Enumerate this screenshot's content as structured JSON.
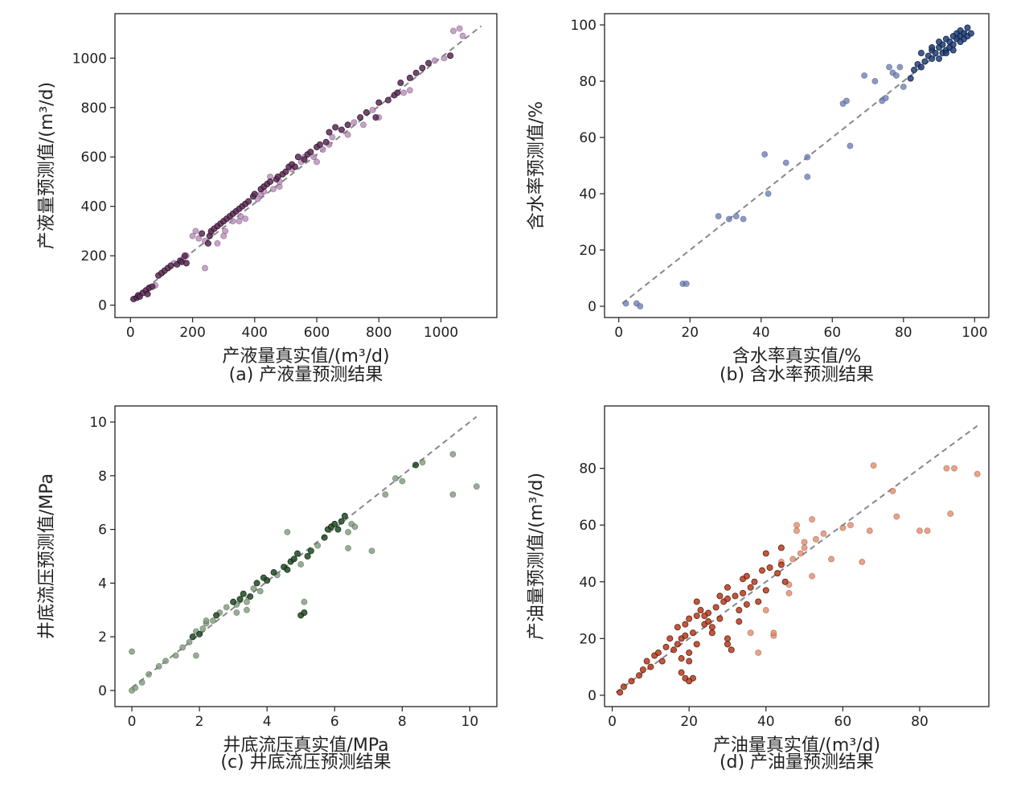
{
  "chart_data": [
    {
      "id": "a",
      "type": "scatter",
      "caption": "(a) 产液量预测结果",
      "xlabel": "产液量真实值/(m³/d)",
      "ylabel": "产液量预测值/(m³/d)",
      "xlim": [
        -50,
        1180
      ],
      "ylim": [
        -50,
        1180
      ],
      "xticks": [
        0,
        200,
        400,
        600,
        800,
        1000
      ],
      "yticks": [
        0,
        200,
        400,
        600,
        800,
        1000
      ],
      "reference_line": [
        [
          0,
          20
        ],
        [
          1130,
          1130
        ]
      ],
      "colors": {
        "dark": "#5a2a55",
        "light": "#b98bbb",
        "edge": "#2a1028"
      },
      "points": {
        "x": [
          10,
          20,
          25,
          30,
          40,
          50,
          55,
          60,
          70,
          80,
          90,
          100,
          110,
          120,
          130,
          140,
          150,
          160,
          165,
          170,
          175,
          180,
          200,
          210,
          220,
          230,
          240,
          250,
          255,
          260,
          270,
          280,
          290,
          300,
          305,
          310,
          320,
          330,
          340,
          350,
          355,
          360,
          370,
          380,
          395,
          400,
          410,
          420,
          430,
          440,
          450,
          460,
          470,
          475,
          480,
          490,
          500,
          510,
          520,
          530,
          540,
          550,
          560,
          570,
          580,
          590,
          600,
          610,
          620,
          630,
          640,
          650,
          660,
          680,
          700,
          720,
          740,
          760,
          780,
          790,
          800,
          830,
          850,
          860,
          870,
          880,
          900,
          920,
          940,
          960,
          980,
          1010,
          1030,
          1040,
          1060,
          1070,
          180,
          240,
          260,
          300,
          330,
          370,
          420,
          430,
          450,
          520,
          600,
          700,
          800,
          280,
          350,
          480,
          560,
          640,
          750,
          900
        ],
        "y": [
          25,
          30,
          40,
          35,
          50,
          60,
          45,
          70,
          75,
          80,
          120,
          130,
          140,
          150,
          160,
          170,
          165,
          180,
          175,
          190,
          200,
          170,
          280,
          300,
          270,
          290,
          150,
          250,
          280,
          300,
          310,
          320,
          330,
          340,
          300,
          350,
          360,
          370,
          380,
          390,
          360,
          400,
          410,
          420,
          440,
          450,
          430,
          470,
          480,
          490,
          500,
          470,
          510,
          520,
          480,
          530,
          540,
          560,
          570,
          560,
          600,
          580,
          590,
          610,
          620,
          600,
          640,
          650,
          630,
          660,
          700,
          680,
          720,
          710,
          730,
          740,
          760,
          780,
          790,
          760,
          820,
          830,
          850,
          860,
          900,
          860,
          920,
          940,
          960,
          980,
          990,
          1000,
          1010,
          1110,
          1120,
          1090,
          200,
          260,
          290,
          280,
          340,
          350,
          450,
          460,
          520,
          550,
          580,
          690,
          760,
          250,
          340,
          500,
          600,
          650,
          730,
          870
        ],
        "dark_flags": [
          1,
          1,
          1,
          1,
          1,
          1,
          1,
          1,
          1,
          0,
          1,
          1,
          1,
          1,
          1,
          0,
          1,
          1,
          1,
          0,
          1,
          1,
          0,
          0,
          0,
          1,
          0,
          1,
          1,
          1,
          1,
          1,
          1,
          1,
          0,
          1,
          1,
          1,
          1,
          1,
          0,
          1,
          1,
          1,
          1,
          1,
          0,
          1,
          1,
          1,
          1,
          0,
          1,
          1,
          0,
          1,
          1,
          1,
          1,
          1,
          1,
          0,
          1,
          1,
          1,
          0,
          1,
          1,
          0,
          1,
          1,
          0,
          1,
          1,
          1,
          0,
          1,
          1,
          0,
          1,
          1,
          1,
          1,
          1,
          1,
          0,
          1,
          1,
          1,
          1,
          0,
          0,
          1,
          0,
          0,
          0,
          0,
          0,
          0,
          0,
          0,
          0,
          0,
          0,
          0,
          0,
          0,
          0,
          0,
          0,
          0,
          0,
          0,
          0,
          0
        ]
      }
    },
    {
      "id": "b",
      "type": "scatter",
      "caption": "(b) 含水率预测结果",
      "xlabel": "含水率真实值/%",
      "ylabel": "含水率预测值/%",
      "xlim": [
        -4,
        104
      ],
      "ylim": [
        -4,
        104
      ],
      "xticks": [
        0,
        20,
        40,
        60,
        80,
        100
      ],
      "yticks": [
        0,
        20,
        40,
        60,
        80,
        100
      ],
      "reference_line": [
        [
          1,
          1
        ],
        [
          98,
          98
        ]
      ],
      "colors": {
        "dark": "#1e3e78",
        "light": "#6f7fb8",
        "edge": "#0c1a38"
      },
      "points": {
        "x": [
          2,
          5,
          6,
          18,
          19,
          28,
          31,
          33,
          35,
          41,
          42,
          47,
          53,
          53,
          63,
          64,
          65,
          69,
          72,
          74,
          75,
          76,
          77,
          78,
          79,
          80,
          82,
          83,
          84,
          85,
          86,
          87,
          88,
          88,
          89,
          90,
          90,
          91,
          91,
          92,
          92,
          93,
          93,
          94,
          94,
          95,
          95,
          96,
          96,
          97,
          97,
          98,
          98,
          99,
          90,
          92,
          94,
          96,
          85,
          88
        ],
        "y": [
          1,
          1,
          0,
          8,
          8,
          32,
          31,
          32,
          31,
          54,
          40,
          51,
          53,
          46,
          72,
          73,
          57,
          82,
          80,
          73,
          74,
          85,
          83,
          82,
          85,
          78,
          81,
          84,
          86,
          85,
          87,
          89,
          88,
          91,
          90,
          92,
          88,
          90,
          93,
          91,
          95,
          92,
          94,
          93,
          96,
          95,
          97,
          96,
          98,
          97,
          95,
          99,
          96,
          97,
          94,
          90,
          91,
          94,
          90,
          92
        ],
        "dark_flags": [
          0,
          0,
          0,
          0,
          0,
          0,
          0,
          0,
          0,
          0,
          0,
          0,
          0,
          0,
          0,
          0,
          0,
          0,
          0,
          0,
          0,
          0,
          0,
          0,
          0,
          0,
          1,
          1,
          1,
          1,
          1,
          1,
          1,
          1,
          1,
          1,
          1,
          1,
          1,
          1,
          1,
          1,
          1,
          1,
          1,
          1,
          1,
          1,
          1,
          1,
          1,
          1,
          1,
          1,
          1,
          1,
          1,
          1,
          1,
          1
        ]
      }
    },
    {
      "id": "c",
      "type": "scatter",
      "caption": "(c) 井底流压预测结果",
      "xlabel": "井底流压真实值/MPa",
      "ylabel": "井底流压预测值/MPa",
      "xlim": [
        -0.5,
        10.8
      ],
      "ylim": [
        -0.6,
        10.6
      ],
      "xticks": [
        0,
        2,
        4,
        6,
        8,
        10
      ],
      "yticks": [
        0,
        2,
        4,
        6,
        8,
        10
      ],
      "reference_line": [
        [
          0,
          0.1
        ],
        [
          10.2,
          10.2
        ]
      ],
      "colors": {
        "dark": "#1f4a23",
        "light": "#7d9a7b",
        "edge": "#0e2410"
      },
      "points": {
        "x": [
          0,
          0,
          0.1,
          0.3,
          0.5,
          0.8,
          1.0,
          1.3,
          1.5,
          1.7,
          1.8,
          1.9,
          2.0,
          2.1,
          2.2,
          2.4,
          2.5,
          2.6,
          2.8,
          3.0,
          3.1,
          3.2,
          3.3,
          3.4,
          3.5,
          3.6,
          3.7,
          3.8,
          3.9,
          4.0,
          4.2,
          4.3,
          4.5,
          4.6,
          4.7,
          4.8,
          4.9,
          5.0,
          5.0,
          5.1,
          5.2,
          5.3,
          5.5,
          5.7,
          5.8,
          5.9,
          6.0,
          6.1,
          6.2,
          6.3,
          6.4,
          6.5,
          6.6,
          7.1,
          7.5,
          7.8,
          8.0,
          8.4,
          8.6,
          9.5,
          9.5,
          10.2,
          1.9,
          2.2,
          3.1,
          3.4,
          4.6,
          5.1,
          6.4
        ],
        "y": [
          0,
          1.45,
          0.1,
          0.3,
          0.6,
          0.9,
          1.1,
          1.3,
          1.6,
          1.8,
          2.0,
          2.2,
          2.1,
          2.3,
          2.5,
          2.6,
          2.8,
          2.9,
          3.1,
          3.3,
          3.2,
          3.4,
          3.6,
          3.3,
          3.5,
          3.8,
          4.0,
          3.7,
          4.2,
          4.1,
          4.4,
          4.3,
          4.6,
          4.5,
          4.8,
          4.9,
          5.1,
          4.7,
          2.8,
          2.9,
          5.0,
          5.2,
          5.4,
          5.7,
          6.0,
          6.1,
          6.2,
          6.0,
          6.3,
          6.5,
          5.9,
          6.2,
          6.1,
          5.2,
          7.3,
          7.9,
          7.8,
          8.4,
          8.5,
          8.8,
          7.3,
          7.6,
          1.3,
          2.6,
          2.9,
          3.0,
          5.9,
          3.3,
          5.3
        ],
        "dark_flags": [
          0,
          0,
          0,
          0,
          0,
          0,
          0,
          0,
          0,
          0,
          1,
          0,
          1,
          0,
          0,
          0,
          1,
          0,
          0,
          1,
          0,
          1,
          1,
          0,
          1,
          0,
          1,
          0,
          1,
          1,
          1,
          0,
          1,
          1,
          1,
          1,
          1,
          0,
          1,
          1,
          1,
          1,
          0,
          1,
          1,
          1,
          1,
          1,
          1,
          1,
          0,
          0,
          0,
          0,
          0,
          0,
          0,
          1,
          0,
          0,
          0,
          0,
          0,
          0,
          0,
          0,
          0,
          0,
          0
        ]
      }
    },
    {
      "id": "d",
      "type": "scatter",
      "caption": "(d) 产油量预测结果",
      "xlabel": "产油量真实值/(m³/d)",
      "ylabel": "产油量预测值/(m³/d)",
      "xlim": [
        -2,
        98
      ],
      "ylim": [
        -4,
        102
      ],
      "xticks": [
        0,
        20,
        40,
        60,
        80
      ],
      "yticks": [
        0,
        20,
        40,
        60,
        80
      ],
      "reference_line": [
        [
          1,
          1
        ],
        [
          95,
          95
        ]
      ],
      "colors": {
        "dark": "#b8391c",
        "light": "#e68a6a",
        "edge": "#4a160a"
      },
      "points": {
        "x": [
          2,
          3,
          5,
          7,
          8,
          9,
          10,
          11,
          12,
          13,
          14,
          15,
          16,
          17,
          17,
          18,
          18,
          19,
          19,
          20,
          20,
          21,
          21,
          22,
          22,
          23,
          24,
          25,
          26,
          27,
          28,
          29,
          30,
          30,
          31,
          32,
          33,
          34,
          34,
          35,
          36,
          37,
          38,
          39,
          40,
          41,
          42,
          43,
          44,
          45,
          46,
          47,
          48,
          49,
          50,
          52,
          53,
          55,
          57,
          60,
          62,
          65,
          67,
          68,
          73,
          74,
          80,
          82,
          87,
          88,
          89,
          95,
          18,
          19,
          20,
          24,
          26,
          28,
          30,
          33,
          36,
          38,
          40,
          42,
          44,
          46,
          48,
          50,
          52,
          20,
          22,
          25,
          30,
          35,
          40,
          44
        ],
        "y": [
          1,
          3,
          5,
          7,
          9,
          12,
          10,
          14,
          15,
          12,
          17,
          20,
          16,
          18,
          24,
          20,
          13,
          25,
          21,
          27,
          15,
          22,
          6,
          28,
          18,
          30,
          25,
          29,
          24,
          31,
          27,
          33,
          20,
          34,
          16,
          35,
          30,
          36,
          41,
          32,
          38,
          40,
          33,
          44,
          37,
          45,
          21,
          43,
          46,
          40,
          36,
          48,
          58,
          50,
          54,
          42,
          55,
          57,
          48,
          59,
          60,
          47,
          58,
          81,
          72,
          63,
          58,
          58,
          80,
          64,
          80,
          78,
          8,
          6,
          5,
          28,
          22,
          35,
          18,
          26,
          22,
          15,
          30,
          22,
          47,
          39,
          60,
          52,
          62,
          12,
          33,
          26,
          38,
          42,
          50,
          52
        ],
        "dark_flags": [
          1,
          1,
          1,
          1,
          1,
          1,
          1,
          1,
          1,
          1,
          1,
          1,
          1,
          1,
          1,
          1,
          1,
          1,
          1,
          1,
          1,
          1,
          1,
          1,
          1,
          1,
          1,
          1,
          1,
          1,
          1,
          1,
          1,
          1,
          1,
          1,
          1,
          1,
          1,
          1,
          1,
          1,
          1,
          1,
          1,
          1,
          0,
          1,
          1,
          1,
          0,
          0,
          0,
          0,
          0,
          0,
          0,
          0,
          0,
          0,
          0,
          0,
          0,
          0,
          0,
          0,
          0,
          0,
          0,
          0,
          0,
          0,
          1,
          1,
          1,
          1,
          1,
          1,
          1,
          1,
          0,
          0,
          0,
          0,
          0,
          0,
          0,
          0,
          0,
          1,
          1,
          1,
          1,
          1,
          1,
          1
        ]
      }
    }
  ]
}
